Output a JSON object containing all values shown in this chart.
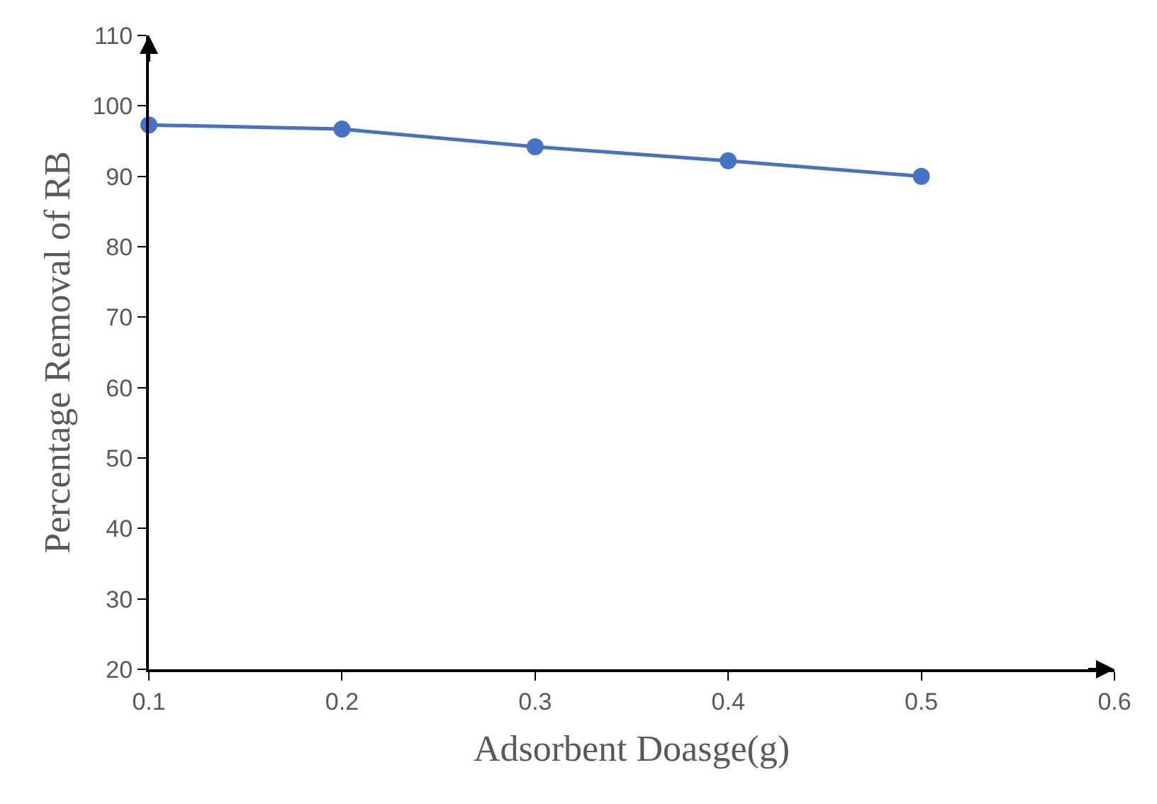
{
  "chart_data": {
    "type": "line",
    "xlabel": "Adsorbent Doasge(g)",
    "ylabel": "Percentage Removal of RB",
    "x": [
      0.1,
      0.2,
      0.3,
      0.4,
      0.5
    ],
    "series": [
      {
        "color": "#4472c4",
        "values": [
          97.3,
          96.7,
          94.2,
          92.2,
          90.0
        ]
      }
    ],
    "xlim": [
      0.1,
      0.6
    ],
    "xticks": [
      0.1,
      0.2,
      0.3,
      0.4,
      0.5,
      0.6
    ],
    "ylim": [
      20,
      110
    ],
    "yticks": [
      20,
      30,
      40,
      50,
      60,
      70,
      80,
      90,
      100,
      110
    ],
    "legend": false,
    "marker": "circle",
    "line_style": "solid"
  }
}
